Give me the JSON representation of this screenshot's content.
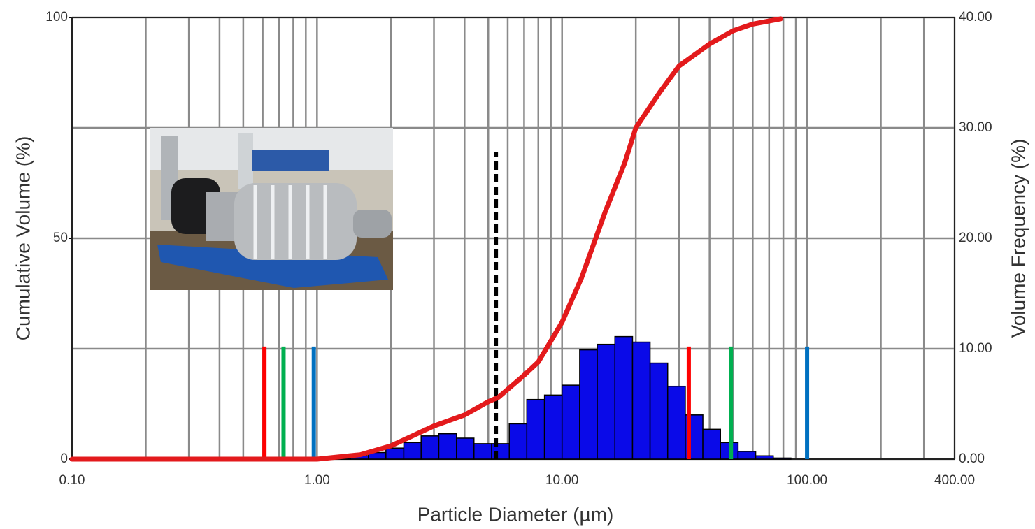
{
  "chart_data": {
    "type": "histogram",
    "xlabel": "Particle Diameter (µm)",
    "ylabel": "Cumulative Volume (%)",
    "y2label": "Volume Frequency (%)",
    "xscale": "log",
    "xlim": [
      0.1,
      400
    ],
    "xticks": [
      {
        "value": 0.1,
        "label": "0.10"
      },
      {
        "value": 1,
        "label": "1.00"
      },
      {
        "value": 10,
        "label": "10.00"
      },
      {
        "value": 100,
        "label": "100.00"
      },
      {
        "value": 400,
        "label": "400.00"
      }
    ],
    "ylim": [
      0,
      100
    ],
    "yticks": [
      0,
      50,
      100
    ],
    "y2lim": [
      0,
      40
    ],
    "y2ticks": [
      {
        "value": 0,
        "label": "0.00"
      },
      {
        "value": 10,
        "label": "10.00"
      },
      {
        "value": 20,
        "label": "20.00"
      },
      {
        "value": 30,
        "label": "30.00"
      },
      {
        "value": 40,
        "label": "40.00"
      }
    ],
    "grid": true,
    "histogram": {
      "axis": "y2",
      "color": "#0a0ae8",
      "bins": [
        1.16,
        1.37,
        1.62,
        1.91,
        2.26,
        2.66,
        3.14,
        3.71,
        4.37,
        5.16,
        6.09,
        7.18,
        8.48,
        10.0,
        11.8,
        13.92,
        16.43,
        19.39,
        22.87,
        26.98,
        31.84,
        37.56,
        44.32,
        52.29,
        61.69,
        72.79,
        85.89
      ],
      "values": [
        0.1,
        0.3,
        0.6,
        1.0,
        1.5,
        2.1,
        2.3,
        1.9,
        1.4,
        1.4,
        3.2,
        5.4,
        5.8,
        6.7,
        9.9,
        10.4,
        11.1,
        10.6,
        8.7,
        6.6,
        4.0,
        2.7,
        1.5,
        0.7,
        0.3,
        0.1
      ]
    },
    "curve": {
      "color": "#e31a1c",
      "x": [
        0.1,
        1.0,
        1.5,
        2,
        3,
        4,
        5,
        5.5,
        7,
        8,
        10,
        12,
        15,
        18,
        20,
        25,
        30,
        40,
        50,
        60,
        78
      ],
      "values": [
        0,
        0,
        1,
        3,
        7.5,
        10,
        13,
        14,
        19,
        22,
        31,
        41,
        56,
        67,
        75,
        83,
        89,
        94,
        97,
        98.5,
        99.7
      ]
    },
    "reference_lines": [
      {
        "x": 0.61,
        "top": 10.2,
        "color": "#ff0000",
        "dashed": false
      },
      {
        "x": 0.73,
        "top": 10.2,
        "color": "#00b050",
        "dashed": false
      },
      {
        "x": 0.97,
        "top": 10.2,
        "color": "#0070c0",
        "dashed": false
      },
      {
        "x": 5.37,
        "top": 27.8,
        "color": "#000000",
        "dashed": true
      },
      {
        "x": 32.9,
        "top": 10.2,
        "color": "#ff0000",
        "dashed": false
      },
      {
        "x": 48.9,
        "top": 10.2,
        "color": "#00b050",
        "dashed": false
      },
      {
        "x": 100,
        "top": 10.2,
        "color": "#0070c0",
        "dashed": false
      }
    ]
  }
}
